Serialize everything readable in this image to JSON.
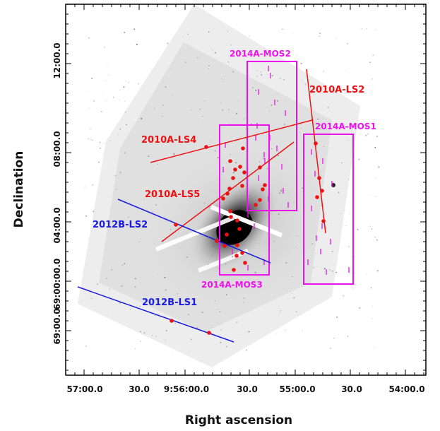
{
  "axes": {
    "xlabel": "Right ascension",
    "ylabel": "Declination",
    "x_ticks": [
      "57:00.0",
      "30.0",
      "9:56:00.0",
      "30.0",
      "55:00.0",
      "30.0",
      "54:00.0"
    ],
    "y_ticks": [
      "12:00.0",
      "08:00.0",
      "04:00.0",
      "69:00:00.0",
      "69:00.0"
    ]
  },
  "colors": {
    "red": "#ee1111",
    "blue": "#1a1ae0",
    "magenta": "#ee11ee",
    "galaxy": "#000000",
    "frame": "#000000"
  },
  "slits": [
    {
      "id": "2010A-LS2",
      "label": "2010A-LS2",
      "color": "red"
    },
    {
      "id": "2010A-LS4",
      "label": "2010A-LS4",
      "color": "red"
    },
    {
      "id": "2010A-LS5",
      "label": "2010A-LS5",
      "color": "red"
    },
    {
      "id": "2012B-LS2",
      "label": "2012B-LS2",
      "color": "blue"
    },
    {
      "id": "2012B-LS1",
      "label": "2012B-LS1",
      "color": "blue"
    }
  ],
  "mos_fields": [
    {
      "id": "2014A-MOS2",
      "label": "2014A-MOS2"
    },
    {
      "id": "2014A-MOS1",
      "label": "2014A-MOS1"
    },
    {
      "id": "2014A-MOS3",
      "label": "2014A-MOS3"
    }
  ]
}
